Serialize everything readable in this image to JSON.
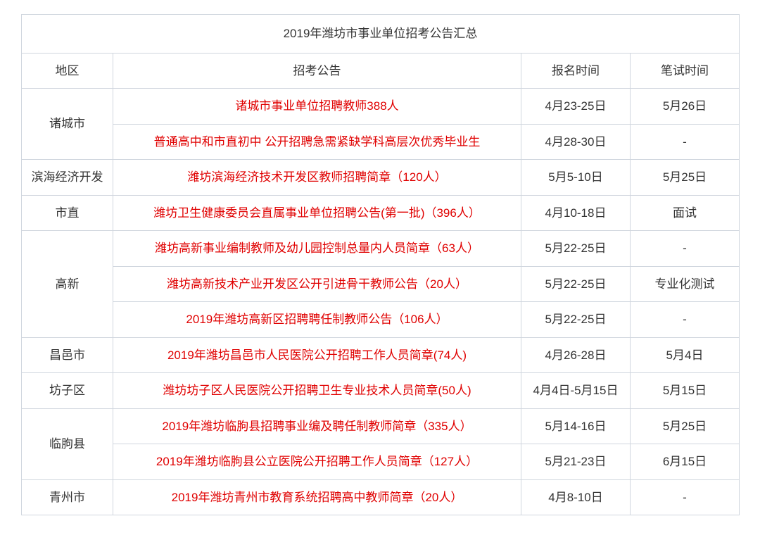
{
  "table": {
    "title": "2019年潍坊市事业单位招考公告汇总",
    "headers": {
      "region": "地区",
      "announcement": "招考公告",
      "signup_time": "报名时间",
      "exam_time": "笔试时间"
    },
    "colors": {
      "announcement_text": "#e00000",
      "normal_text": "#333333",
      "border": "#d0d6de",
      "background": "#ffffff"
    },
    "typography": {
      "font_family": "Microsoft YaHei",
      "cell_font_size": 17,
      "title_font_size": 17
    },
    "column_widths": {
      "region": 130,
      "announcement": 580,
      "signup_time": 155,
      "exam_time": 155
    },
    "rows": [
      {
        "region": "诸城市",
        "rowspan": 2,
        "announcement": "诸城市事业单位招聘教师388人",
        "signup_time": "4月23-25日",
        "exam_time": "5月26日"
      },
      {
        "region": null,
        "announcement": "普通高中和市直初中 公开招聘急需紧缺学科高层次优秀毕业生",
        "signup_time": "4月28-30日",
        "exam_time": "-"
      },
      {
        "region": "滨海经济开发",
        "rowspan": 1,
        "announcement": "潍坊滨海经济技术开发区教师招聘简章（120人）",
        "signup_time": "5月5-10日",
        "exam_time": "5月25日"
      },
      {
        "region": "市直",
        "rowspan": 1,
        "announcement": "潍坊卫生健康委员会直属事业单位招聘公告(第一批)（396人）",
        "signup_time": "4月10-18日",
        "exam_time": "面试"
      },
      {
        "region": "高新",
        "rowspan": 3,
        "announcement": "潍坊高新事业编制教师及幼儿园控制总量内人员简章（63人）",
        "signup_time": "5月22-25日",
        "exam_time": "-"
      },
      {
        "region": null,
        "announcement": "潍坊高新技术产业开发区公开引进骨干教师公告（20人）",
        "signup_time": "5月22-25日",
        "exam_time": "专业化测试"
      },
      {
        "region": null,
        "announcement": "2019年潍坊高新区招聘聘任制教师公告（106人）",
        "signup_time": "5月22-25日",
        "exam_time": "-"
      },
      {
        "region": "昌邑市",
        "rowspan": 1,
        "announcement": "2019年潍坊昌邑市人民医院公开招聘工作人员简章(74人)",
        "signup_time": "4月26-28日",
        "exam_time": "5月4日"
      },
      {
        "region": "坊子区",
        "rowspan": 1,
        "announcement": "潍坊坊子区人民医院公开招聘卫生专业技术人员简章(50人)",
        "signup_time": "4月4日-5月15日",
        "exam_time": "5月15日"
      },
      {
        "region": "临朐县",
        "rowspan": 2,
        "announcement": "2019年潍坊临朐县招聘事业编及聘任制教师简章（335人）",
        "signup_time": "5月14-16日",
        "exam_time": "5月25日"
      },
      {
        "region": null,
        "announcement": "2019年潍坊临朐县公立医院公开招聘工作人员简章（127人）",
        "signup_time": "5月21-23日",
        "exam_time": "6月15日"
      },
      {
        "region": "青州市",
        "rowspan": 1,
        "announcement": "2019年潍坊青州市教育系统招聘高中教师简章（20人）",
        "signup_time": "4月8-10日",
        "exam_time": "-"
      }
    ]
  }
}
